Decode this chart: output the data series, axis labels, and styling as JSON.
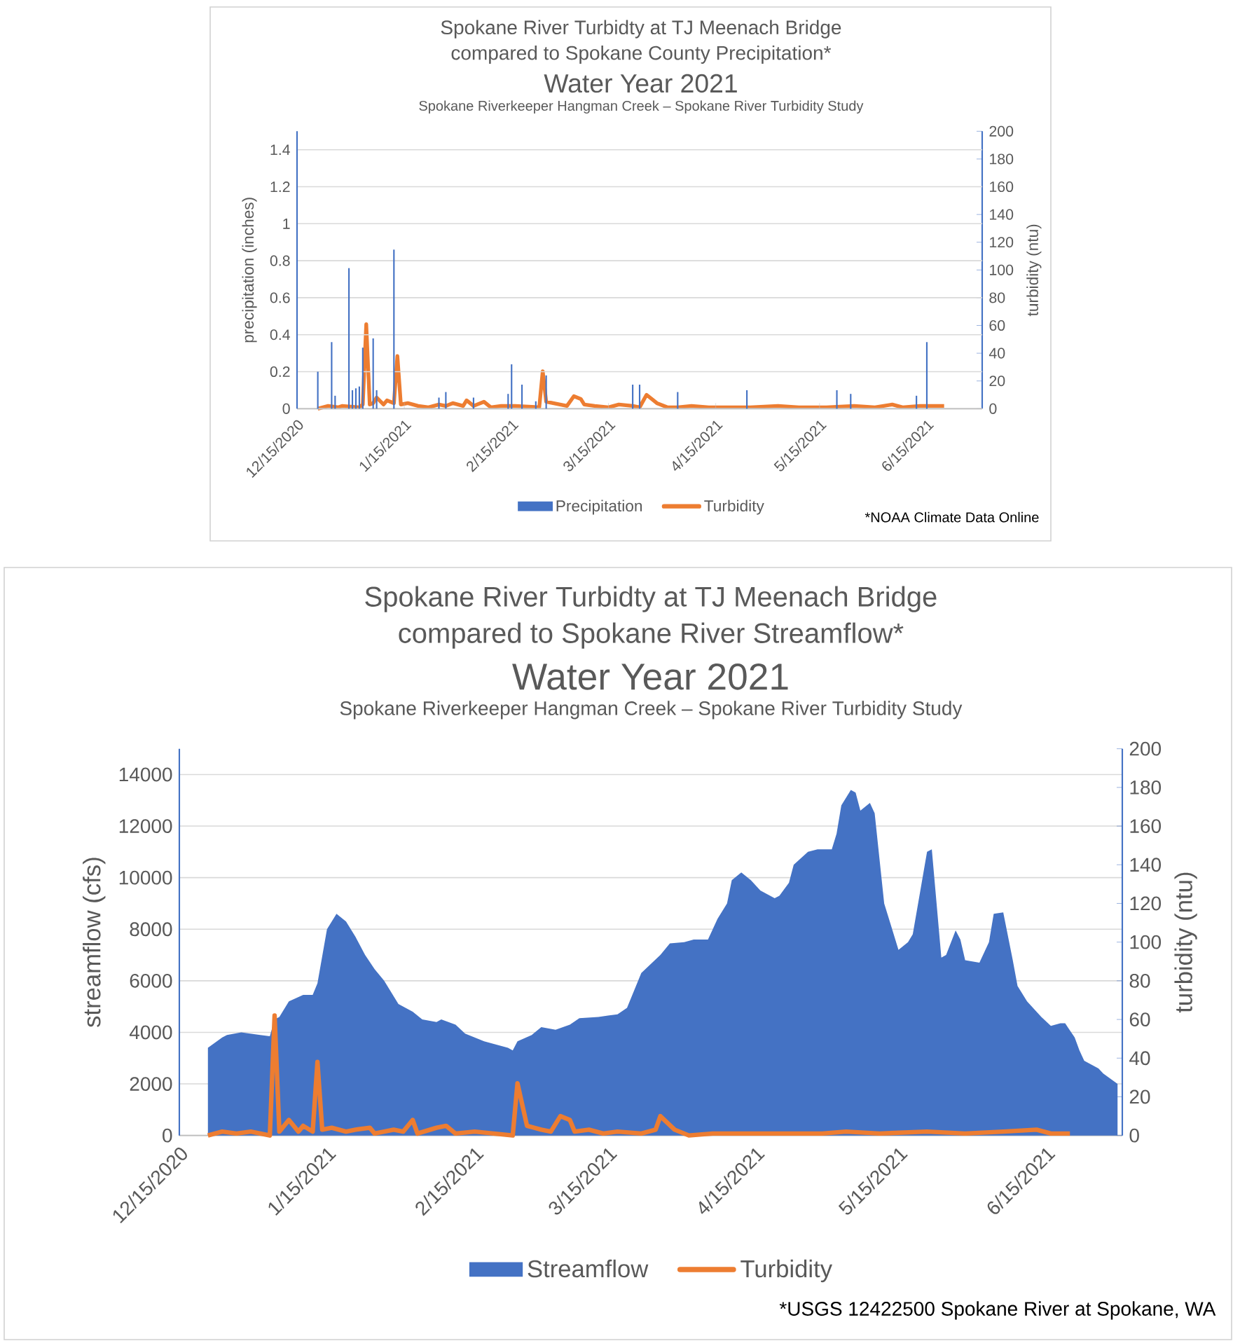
{
  "chart_data": [
    {
      "type": "bar",
      "title": "Spokane River Turbidty at TJ Meenach Bridge compared to Spokane County Precipitation*",
      "subtitle": "Water Year 2021",
      "annotations": [
        "Spokane Riverkeeper Hangman Creek – Spokane River Turbidity Study",
        "*NOAA Climate Data Online"
      ],
      "ylabel": "precipitation (inches)",
      "y2label": "turbidity (ntu)",
      "xlim": [
        "2020-12-15",
        "2021-07-01"
      ],
      "xticks": [
        {
          "value": "2020-12-15",
          "label": "12/15/2020"
        },
        {
          "value": "2021-01-15",
          "label": "1/15/2021"
        },
        {
          "value": "2021-02-15",
          "label": "2/15/2021"
        },
        {
          "value": "2021-03-15",
          "label": "3/15/2021"
        },
        {
          "value": "2021-04-15",
          "label": "4/15/2021"
        },
        {
          "value": "2021-05-15",
          "label": "5/15/2021"
        },
        {
          "value": "2021-06-15",
          "label": "6/15/2021"
        }
      ],
      "ylim": [
        0,
        1.5
      ],
      "yticks": [
        0,
        0.2,
        0.4,
        0.6,
        0.8,
        1,
        1.2,
        1.4
      ],
      "y2lim": [
        0,
        200
      ],
      "y2ticks": [
        0,
        20,
        40,
        60,
        80,
        100,
        120,
        140,
        160,
        180,
        200
      ],
      "grid": "y",
      "legend": "bottom",
      "series": [
        {
          "name": "Precipitation",
          "color": "#4472c4",
          "x": [
            "2020-12-21",
            "2020-12-25",
            "2020-12-26",
            "2020-12-30",
            "2020-12-31",
            "2021-01-01",
            "2021-01-02",
            "2021-01-03",
            "2021-01-06",
            "2021-01-07",
            "2021-01-12",
            "2021-01-25",
            "2021-01-27",
            "2021-02-04",
            "2021-02-14",
            "2021-02-15",
            "2021-02-18",
            "2021-02-22",
            "2021-02-25",
            "2021-03-22",
            "2021-03-24",
            "2021-04-04",
            "2021-04-24",
            "2021-05-20",
            "2021-05-24",
            "2021-06-12",
            "2021-06-15"
          ],
          "values": [
            0.2,
            0.36,
            0.07,
            0.76,
            0.1,
            0.11,
            0.12,
            0.33,
            0.38,
            0.1,
            0.86,
            0.06,
            0.09,
            0.06,
            0.08,
            0.24,
            0.13,
            0.04,
            0.18,
            0.13,
            0.13,
            0.09,
            0.1,
            0.1,
            0.08,
            0.07,
            0.36
          ]
        },
        {
          "name": "Turbidity",
          "type": "line",
          "axis": "y2",
          "color": "#ed7d31",
          "x": [
            "2020-12-21",
            "2020-12-24",
            "2020-12-27",
            "2020-12-28",
            "2021-01-02",
            "2021-01-03",
            "2021-01-04",
            "2021-01-05",
            "2021-01-06",
            "2021-01-07",
            "2021-01-09",
            "2021-01-10",
            "2021-01-12",
            "2021-01-13",
            "2021-01-14",
            "2021-01-16",
            "2021-01-19",
            "2021-01-22",
            "2021-01-25",
            "2021-01-27",
            "2021-01-29",
            "2021-02-01",
            "2021-02-02",
            "2021-02-04",
            "2021-02-07",
            "2021-02-09",
            "2021-02-12",
            "2021-02-16",
            "2021-02-23",
            "2021-02-24",
            "2021-02-25",
            "2021-03-01",
            "2021-03-03",
            "2021-03-05",
            "2021-03-07",
            "2021-03-08",
            "2021-03-11",
            "2021-03-15",
            "2021-03-18",
            "2021-03-22",
            "2021-03-24",
            "2021-03-26",
            "2021-03-29",
            "2021-04-01",
            "2021-04-04",
            "2021-04-08",
            "2021-04-13",
            "2021-04-19",
            "2021-04-25",
            "2021-05-03",
            "2021-05-09",
            "2021-05-17",
            "2021-05-25",
            "2021-05-31",
            "2021-06-05",
            "2021-06-08",
            "2021-06-13",
            "2021-06-16",
            "2021-06-20"
          ],
          "values": [
            0,
            2,
            1,
            2,
            1,
            3,
            61,
            3,
            4,
            8,
            3,
            6,
            4,
            38,
            3,
            4,
            2,
            1,
            3,
            2,
            4,
            2,
            6,
            2,
            5,
            1,
            2,
            2,
            1,
            27,
            5,
            3,
            2,
            9,
            7,
            3,
            2,
            1,
            3,
            2,
            1,
            10,
            4,
            1,
            1,
            2,
            1,
            1,
            1,
            2,
            1,
            1,
            2,
            1,
            3,
            1,
            2,
            2,
            2
          ]
        }
      ]
    },
    {
      "type": "area",
      "title": "Spokane River Turbidty at TJ Meenach Bridge compared to Spokane River Streamflow*",
      "subtitle": "Water Year 2021",
      "annotations": [
        "Spokane Riverkeeper Hangman Creek – Spokane River Turbidity Study",
        "*USGS 12422500 Spokane River at Spokane, WA"
      ],
      "ylabel": "streamflow (cfs)",
      "y2label": "turbidity (ntu)",
      "xlim": [
        "2020-12-15",
        "2021-07-01"
      ],
      "xticks": [
        {
          "value": "2020-12-15",
          "label": "12/15/2020"
        },
        {
          "value": "2021-01-15",
          "label": "1/15/2021"
        },
        {
          "value": "2021-02-15",
          "label": "2/15/2021"
        },
        {
          "value": "2021-03-15",
          "label": "3/15/2021"
        },
        {
          "value": "2021-04-15",
          "label": "4/15/2021"
        },
        {
          "value": "2021-05-15",
          "label": "5/15/2021"
        },
        {
          "value": "2021-06-15",
          "label": "6/15/2021"
        }
      ],
      "ylim": [
        0,
        15000
      ],
      "yticks": [
        0,
        2000,
        4000,
        6000,
        8000,
        10000,
        12000,
        14000
      ],
      "y2lim": [
        0,
        200
      ],
      "y2ticks": [
        0,
        20,
        40,
        60,
        80,
        100,
        120,
        140,
        160,
        180,
        200
      ],
      "grid": "y",
      "legend": "bottom",
      "series": [
        {
          "name": "Streamflow",
          "color": "#4472c4",
          "x": [
            "2020-12-21",
            "2020-12-24",
            "2020-12-25",
            "2020-12-28",
            "2021-01-01",
            "2021-01-03",
            "2021-01-04",
            "2021-01-05",
            "2021-01-07",
            "2021-01-10",
            "2021-01-12",
            "2021-01-13",
            "2021-01-15",
            "2021-01-17",
            "2021-01-19",
            "2021-01-21",
            "2021-01-23",
            "2021-01-25",
            "2021-01-27",
            "2021-01-29",
            "2021-01-30",
            "2021-02-02",
            "2021-02-04",
            "2021-02-07",
            "2021-02-08",
            "2021-02-11",
            "2021-02-13",
            "2021-02-15",
            "2021-02-17",
            "2021-02-20",
            "2021-02-22",
            "2021-02-23",
            "2021-02-24",
            "2021-02-27",
            "2021-03-01",
            "2021-03-04",
            "2021-03-07",
            "2021-03-09",
            "2021-03-13",
            "2021-03-15",
            "2021-03-17",
            "2021-03-19",
            "2021-03-22",
            "2021-03-26",
            "2021-03-28",
            "2021-03-31",
            "2021-04-02",
            "2021-04-05",
            "2021-04-07",
            "2021-04-09",
            "2021-04-10",
            "2021-04-12",
            "2021-04-14",
            "2021-04-16",
            "2021-04-19",
            "2021-04-20",
            "2021-04-22",
            "2021-04-23",
            "2021-04-26",
            "2021-04-28",
            "2021-05-01",
            "2021-05-02",
            "2021-05-03",
            "2021-05-05",
            "2021-05-06",
            "2021-05-07",
            "2021-05-09",
            "2021-05-10",
            "2021-05-12",
            "2021-05-15",
            "2021-05-17",
            "2021-05-18",
            "2021-05-21",
            "2021-05-22",
            "2021-05-24",
            "2021-05-25",
            "2021-05-27",
            "2021-05-28",
            "2021-05-29",
            "2021-06-01",
            "2021-06-03",
            "2021-06-04",
            "2021-06-06",
            "2021-06-08",
            "2021-06-09",
            "2021-06-11",
            "2021-06-13",
            "2021-06-14",
            "2021-06-16",
            "2021-06-18",
            "2021-06-19",
            "2021-06-21",
            "2021-06-22",
            "2021-06-23",
            "2021-06-25",
            "2021-06-26",
            "2021-06-27",
            "2021-06-30"
          ],
          "values": [
            3400,
            3800,
            3900,
            4000,
            3900,
            3850,
            4500,
            4600,
            5200,
            5450,
            5450,
            5900,
            8000,
            8600,
            8300,
            7700,
            7000,
            6450,
            6000,
            5400,
            5100,
            4800,
            4500,
            4400,
            4500,
            4300,
            3950,
            3800,
            3650,
            3500,
            3400,
            3300,
            3650,
            3900,
            4200,
            4100,
            4300,
            4550,
            4600,
            4650,
            4700,
            4950,
            6300,
            7000,
            7450,
            7500,
            7600,
            7600,
            8400,
            9000,
            9900,
            10200,
            9900,
            9500,
            9200,
            9300,
            9800,
            10500,
            11000,
            11100,
            11100,
            11700,
            12800,
            13400,
            13300,
            12600,
            12900,
            12500,
            9000,
            7200,
            7500,
            7800,
            11000,
            11100,
            6900,
            7000,
            7950,
            7600,
            6800,
            6700,
            7500,
            8600,
            8650,
            6800,
            5800,
            5200,
            4800,
            4600,
            4250,
            4350,
            4350,
            3800,
            3300,
            2900,
            2700,
            2600,
            2400,
            2000
          ]
        },
        {
          "name": "Turbidity",
          "type": "line",
          "axis": "y2",
          "color": "#ed7d31",
          "x": [
            "2020-12-21",
            "2020-12-24",
            "2020-12-27",
            "2020-12-30",
            "2021-01-03",
            "2021-01-04",
            "2021-01-05",
            "2021-01-07",
            "2021-01-09",
            "2021-01-10",
            "2021-01-12",
            "2021-01-13",
            "2021-01-14",
            "2021-01-16",
            "2021-01-19",
            "2021-01-21",
            "2021-01-24",
            "2021-01-25",
            "2021-01-29",
            "2021-01-31",
            "2021-02-02",
            "2021-02-03",
            "2021-02-07",
            "2021-02-09",
            "2021-02-11",
            "2021-02-15",
            "2021-02-19",
            "2021-02-23",
            "2021-02-24",
            "2021-02-26",
            "2021-03-01",
            "2021-03-03",
            "2021-03-05",
            "2021-03-07",
            "2021-03-08",
            "2021-03-11",
            "2021-03-14",
            "2021-03-17",
            "2021-03-22",
            "2021-03-25",
            "2021-03-26",
            "2021-03-29",
            "2021-04-01",
            "2021-04-06",
            "2021-04-13",
            "2021-04-21",
            "2021-04-29",
            "2021-05-04",
            "2021-05-11",
            "2021-05-21",
            "2021-05-29",
            "2021-06-06",
            "2021-06-13",
            "2021-06-16",
            "2021-06-20"
          ],
          "values": [
            0,
            2,
            1,
            2,
            0,
            62,
            2,
            8,
            2,
            5,
            2,
            38,
            3,
            4,
            2,
            3,
            4,
            1,
            3,
            2,
            8,
            1,
            4,
            5,
            1,
            2,
            1,
            0,
            27,
            5,
            3,
            2,
            10,
            8,
            2,
            3,
            1,
            2,
            1,
            3,
            10,
            3,
            0,
            1,
            1,
            1,
            1,
            2,
            1,
            2,
            1,
            2,
            3,
            1,
            1
          ]
        }
      ]
    }
  ]
}
